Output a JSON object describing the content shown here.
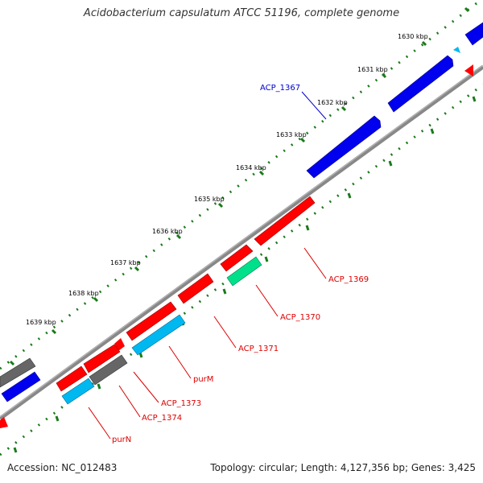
{
  "title": "Acidobacterium capsulatum ATCC 51196, complete genome",
  "footer": {
    "accession": "Accession: NC_012483",
    "topology": "Topology: circular; Length: 4,127,356 bp; Genes: 3,425"
  },
  "colors": {
    "backbone": "#888888",
    "tick": "#1a7a1a",
    "tick_label": "#000000",
    "cds_red": "#ff0000",
    "cds_blue": "#0000ee",
    "cds_cyan": "#00b8f0",
    "cds_gray": "#666666",
    "cds_green": "#00e08a",
    "label_blue": "#0000cc",
    "label_red": "#dd0000"
  },
  "ticks": [
    "1630 kbp",
    "1631 kbp",
    "1632 kbp",
    "1633 kbp",
    "1634 kbp",
    "1635 kbp",
    "1636 kbp",
    "1637 kbp",
    "1638 kbp",
    "1639 kbp"
  ],
  "features": [
    {
      "color": "blue",
      "strand": "+",
      "note": "top-right partial"
    },
    {
      "color": "cyan",
      "strand": "+",
      "note": "small"
    },
    {
      "color": "blue",
      "strand": "+"
    },
    {
      "color": "blue",
      "strand": "+",
      "label": "ACP_1367"
    },
    {
      "color": "red",
      "strand": "-",
      "label": "ACP_1369"
    },
    {
      "color": "red",
      "strand": "-"
    },
    {
      "color": "green",
      "strand": "-",
      "label": "ACP_1370"
    },
    {
      "color": "red",
      "strand": "-",
      "label": "ACP_1371"
    },
    {
      "color": "red",
      "strand": "-"
    },
    {
      "color": "cyan",
      "strand": "-",
      "label": "purM"
    },
    {
      "color": "red",
      "strand": "-"
    },
    {
      "color": "red",
      "strand": "-"
    },
    {
      "color": "gray",
      "strand": "-",
      "label": "ACP_1373"
    },
    {
      "color": "red",
      "strand": "-",
      "label": "ACP_1374"
    },
    {
      "color": "cyan",
      "strand": "-",
      "label": "purN"
    },
    {
      "color": "gray",
      "strand": "+"
    },
    {
      "color": "blue",
      "strand": "+"
    },
    {
      "color": "red",
      "strand": "-"
    }
  ],
  "labels": {
    "acp1367": "ACP_1367",
    "acp1369": "ACP_1369",
    "acp1370": "ACP_1370",
    "acp1371": "ACP_1371",
    "purM": "purM",
    "acp1373": "ACP_1373",
    "acp1374": "ACP_1374",
    "purN": "purN"
  }
}
